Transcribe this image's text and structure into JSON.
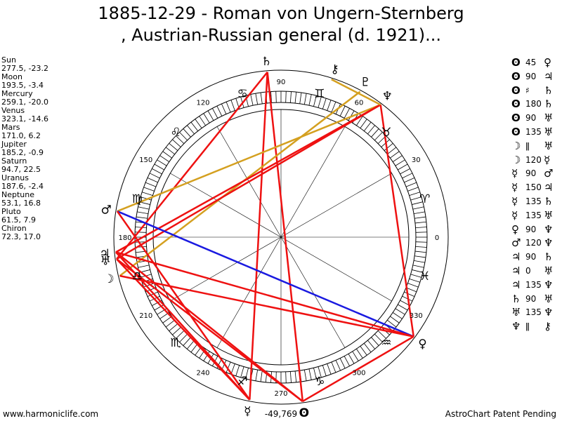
{
  "title": {
    "line1": "1885-12-29 - Roman von Ungern-Sternberg",
    "line2": ", Austrian-Russian general (d. 1921)..."
  },
  "positions": [
    {
      "name": "Sun",
      "value": "277.5, -23.2"
    },
    {
      "name": "Moon",
      "value": "193.5, -3.4"
    },
    {
      "name": "Mercury",
      "value": "259.1, -20.0"
    },
    {
      "name": "Venus",
      "value": "323.1, -14.6"
    },
    {
      "name": "Mars",
      "value": "171.0, 6.2"
    },
    {
      "name": "Jupiter",
      "value": "185.2, -0.9"
    },
    {
      "name": "Saturn",
      "value": "94.7, 22.5"
    },
    {
      "name": "Uranus",
      "value": "187.6, -2.4"
    },
    {
      "name": "Neptune",
      "value": "53.1, 16.8"
    },
    {
      "name": "Pluto",
      "value": "61.5, 7.9"
    },
    {
      "name": "Chiron",
      "value": "72.3, 17.0"
    }
  ],
  "aspects": [
    {
      "p1": "ʘ",
      "a": "45",
      "p2": "♀"
    },
    {
      "p1": "ʘ",
      "a": "90",
      "p2": "♃"
    },
    {
      "p1": "ʘ",
      "a": "♯",
      "p2": "♄"
    },
    {
      "p1": "ʘ",
      "a": "180",
      "p2": "♄"
    },
    {
      "p1": "ʘ",
      "a": "90",
      "p2": "♅"
    },
    {
      "p1": "ʘ",
      "a": "135",
      "p2": "♅"
    },
    {
      "p1": "☽",
      "a": "ǁ",
      "p2": "♅"
    },
    {
      "p1": "☽",
      "a": "120",
      "p2": "☿"
    },
    {
      "p1": "☿",
      "a": "90",
      "p2": "♂"
    },
    {
      "p1": "☿",
      "a": "150",
      "p2": "♃"
    },
    {
      "p1": "☿",
      "a": "135",
      "p2": "♄"
    },
    {
      "p1": "☿",
      "a": "135",
      "p2": "♅"
    },
    {
      "p1": "♀",
      "a": "90",
      "p2": "♆"
    },
    {
      "p1": "♂",
      "a": "120",
      "p2": "♆"
    },
    {
      "p1": "♃",
      "a": "90",
      "p2": "♄"
    },
    {
      "p1": "♃",
      "a": "0",
      "p2": "♅"
    },
    {
      "p1": "♃",
      "a": "135",
      "p2": "♆"
    },
    {
      "p1": "♄",
      "a": "90",
      "p2": "♅"
    },
    {
      "p1": "♅",
      "a": "135",
      "p2": "♆"
    },
    {
      "p1": "♆",
      "a": "ǁ",
      "p2": "⚷"
    }
  ],
  "wheel": {
    "degree_labels": [
      "0",
      "30",
      "60",
      "90",
      "120",
      "150",
      "180",
      "210",
      "240",
      "270",
      "300",
      "330"
    ],
    "signs": [
      "♈",
      "♉",
      "♊",
      "♋",
      "♌",
      "♍",
      "♎",
      "♏",
      "♐",
      "♑",
      "♒",
      "♓"
    ],
    "planets": [
      {
        "glyph": "ʘ",
        "lon": 277.5
      },
      {
        "glyph": "☽",
        "lon": 193.5
      },
      {
        "glyph": "☿",
        "lon": 259.1
      },
      {
        "glyph": "♀",
        "lon": 323.1
      },
      {
        "glyph": "♂",
        "lon": 171.0
      },
      {
        "glyph": "♃",
        "lon": 185.2
      },
      {
        "glyph": "♄",
        "lon": 94.7
      },
      {
        "glyph": "♅",
        "lon": 187.6
      },
      {
        "glyph": "♆",
        "lon": 53.1
      },
      {
        "glyph": "♇",
        "lon": 61.5
      },
      {
        "glyph": "⚷",
        "lon": 72.3
      }
    ],
    "aspect_lines": [
      {
        "a": 94.7,
        "b": 277.5,
        "color": "#ee1111"
      },
      {
        "a": 94.7,
        "b": 187.6,
        "color": "#ee1111"
      },
      {
        "a": 94.7,
        "b": 259.1,
        "color": "#ee1111"
      },
      {
        "a": 61.5,
        "b": 193.5,
        "color": "#d4a020"
      },
      {
        "a": 53.1,
        "b": 171.0,
        "color": "#d4a020"
      },
      {
        "a": 53.1,
        "b": 323.1,
        "color": "#ee1111"
      },
      {
        "a": 53.1,
        "b": 185.2,
        "color": "#ee1111"
      },
      {
        "a": 53.1,
        "b": 187.6,
        "color": "#ee1111"
      },
      {
        "a": 171.0,
        "b": 323.1,
        "color": "#1a1ae0"
      },
      {
        "a": 171.0,
        "b": 259.1,
        "color": "#ee1111"
      },
      {
        "a": 185.2,
        "b": 259.1,
        "color": "#ee1111"
      },
      {
        "a": 187.6,
        "b": 259.1,
        "color": "#ee1111"
      },
      {
        "a": 185.2,
        "b": 277.5,
        "color": "#ee1111"
      },
      {
        "a": 187.6,
        "b": 277.5,
        "color": "#ee1111"
      },
      {
        "a": 185.2,
        "b": 323.1,
        "color": "#ee1111"
      },
      {
        "a": 193.5,
        "b": 323.1,
        "color": "#ee1111"
      },
      {
        "a": 277.5,
        "b": 323.1,
        "color": "#ee1111"
      },
      {
        "a": 53.1,
        "b": 72.3,
        "color": "#d4a020"
      }
    ]
  },
  "bottom_number": "-49,769",
  "footer": {
    "left": "www.harmoniclife.com",
    "right": "AstroChart Patent Pending"
  }
}
